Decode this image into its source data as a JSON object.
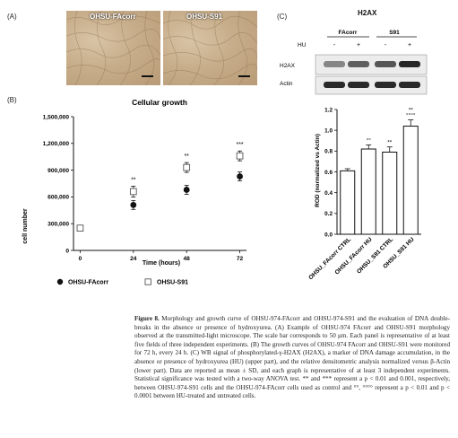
{
  "panel_a": {
    "label": "(A)",
    "images": [
      {
        "title": "OHSU-FAcorr"
      },
      {
        "title": "OHSU-S91"
      }
    ]
  },
  "panel_b": {
    "label": "(B)"
  },
  "panel_c": {
    "label": "(C)",
    "title": "H2AX",
    "blot": {
      "groups": [
        "FAcorr",
        "S91"
      ],
      "hu_label": "HU",
      "hu_marks": [
        "-",
        "+",
        "-",
        "+"
      ],
      "rows": [
        "H2AX",
        "Actin"
      ],
      "h2ax_intensity": [
        0.35,
        0.55,
        0.6,
        0.85
      ]
    }
  },
  "chart_data": [
    {
      "type": "scatter",
      "title": "Cellular growth",
      "xlabel": "Time (hours)",
      "ylabel": "cell number",
      "x": [
        0,
        24,
        48,
        72
      ],
      "xticks": [
        "0",
        "24",
        "48",
        "72"
      ],
      "ylim": [
        0,
        1500000
      ],
      "yticks": [
        0,
        300000,
        600000,
        900000,
        1200000,
        1500000
      ],
      "ytick_labels": [
        "0",
        "300,000",
        "600,000",
        "900,000",
        "1,200,000",
        "1,500,000"
      ],
      "series": [
        {
          "name": "OHSU-FAcorr",
          "marker": "filled-circle",
          "values": [
            250000,
            510000,
            680000,
            830000
          ],
          "err": [
            15000,
            50000,
            50000,
            50000
          ]
        },
        {
          "name": "OHSU-S91",
          "marker": "open-square",
          "values": [
            250000,
            660000,
            930000,
            1060000
          ],
          "err": [
            15000,
            60000,
            55000,
            55000
          ]
        }
      ],
      "annotations": [
        {
          "x": 24,
          "text": "**"
        },
        {
          "x": 48,
          "text": "**"
        },
        {
          "x": 72,
          "text": "***"
        }
      ],
      "legend": "bottom"
    },
    {
      "type": "bar",
      "ylabel": "ROD (normalized vs Actin)",
      "ylim": [
        0,
        1.2
      ],
      "yticks": [
        0.0,
        0.2,
        0.4,
        0.6,
        0.8,
        1.0,
        1.2
      ],
      "ytick_labels": [
        "0.0",
        "0.2",
        "0.4",
        "0.6",
        "0.8",
        "1.0",
        "1.2"
      ],
      "categories": [
        "OHSU_FAcorr CTRL",
        "OHSU_FAcorr HU",
        "OHSU_S91 CTRL",
        "OHSU_S91 HU"
      ],
      "values": [
        0.61,
        0.82,
        0.79,
        1.04
      ],
      "err": [
        0.02,
        0.04,
        0.05,
        0.06
      ],
      "annotations": [
        "",
        "°°",
        "**",
        "**\n°°°°"
      ]
    }
  ],
  "caption": {
    "lead": "Figure 8.",
    "body": " Morphology and growth curve of OHSU-974-FAcorr and OHSU-974-S91 and the evaluation of DNA double-breaks in the absence or presence of hydroxyurea. (A) Example of OHSU-974 FAcorr and OHSU-S91 morphology observed at the transmitted-light microscope. The scale bar corresponds to 50 μm. Each panel is representative of at least five fields of three independent experiments. (B) The growth curves of OHSU-974 FAcorr and OHSU-S91 were monitored for 72 h, every 24 h. (C) WB signal of phosphorylated-γ-H2AX (H2AX), a marker of DNA damage accumulation, in the absence or presence of hydroxyurea (HU) (upper part), and the relative densitometric analysis normalized versus β-Actin (lower part). Data are reported as mean ± SD, and each graph is representative of at least 3 independent experiments. Statistical significance was tested with a two-way ANOVA test. ** and *** represent a p < 0.01 and 0.001, respectively, between OHSU-974-S91 cells and the OHSU-974-FAcorr cells used as control and °°, °°°° represent a p < 0.01 and p < 0.0001 between HU-treated and untreated cells."
  }
}
